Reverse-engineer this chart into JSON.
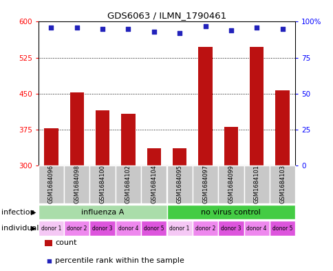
{
  "title": "GDS6063 / ILMN_1790461",
  "samples": [
    "GSM1684096",
    "GSM1684098",
    "GSM1684100",
    "GSM1684102",
    "GSM1684104",
    "GSM1684095",
    "GSM1684097",
    "GSM1684099",
    "GSM1684101",
    "GSM1684103"
  ],
  "counts": [
    378,
    453,
    415,
    408,
    335,
    335,
    548,
    380,
    548,
    457
  ],
  "percentiles": [
    96,
    96,
    95,
    95,
    93,
    92,
    97,
    94,
    96,
    95
  ],
  "ylim_left": [
    300,
    600
  ],
  "ylim_right": [
    0,
    100
  ],
  "yticks_left": [
    300,
    375,
    450,
    525,
    600
  ],
  "yticks_right": [
    0,
    25,
    50,
    75,
    100
  ],
  "bar_color": "#bb1111",
  "dot_color": "#2222bb",
  "bar_width": 0.55,
  "infection_groups": [
    {
      "label": "influenza A",
      "start": 0,
      "end": 5,
      "color": "#aaddaa"
    },
    {
      "label": "no virus control",
      "start": 5,
      "end": 10,
      "color": "#44cc44"
    }
  ],
  "individuals": [
    "donor 1",
    "donor 2",
    "donor 3",
    "donor 4",
    "donor 5",
    "donor 1",
    "donor 2",
    "donor 3",
    "donor 4",
    "donor 5"
  ],
  "individual_colors": [
    "#f0b0f0",
    "#e080e0",
    "#d060d0",
    "#e080e0",
    "#e080e0",
    "#f0b0f0",
    "#e080e0",
    "#d060d0",
    "#e080e0",
    "#e080e0"
  ],
  "sample_bg_color": "#c8c8c8",
  "infection_label": "infection",
  "individual_label": "individual",
  "legend_count_label": "count",
  "legend_percentile_label": "percentile rank within the sample"
}
